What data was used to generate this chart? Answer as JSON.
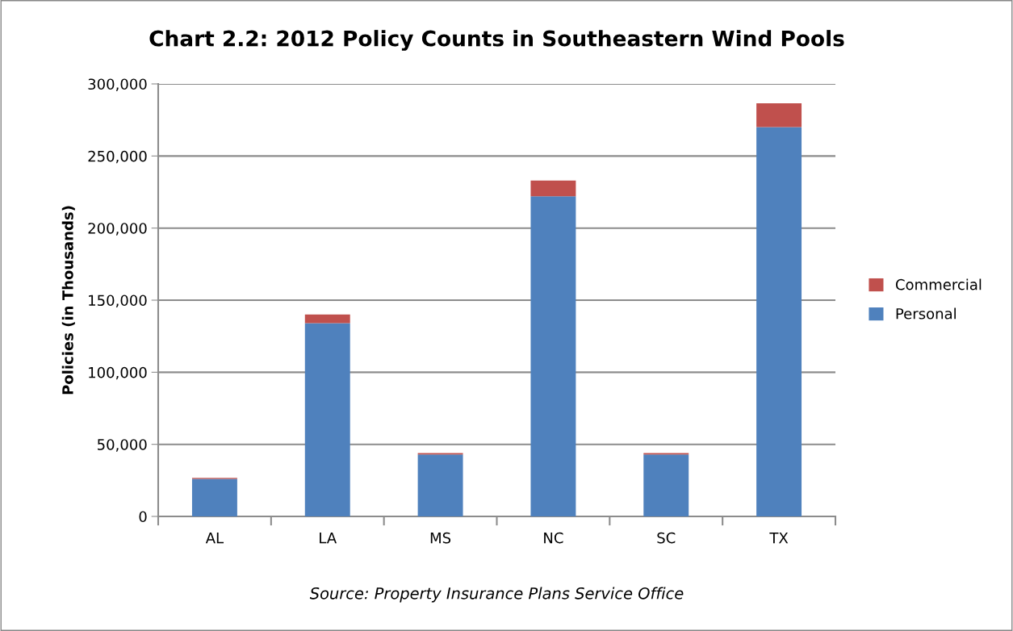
{
  "chart_data": {
    "type": "bar",
    "title": "Chart 2.2: 2012 Policy Counts in Southeastern Wind Pools",
    "ylabel": "Policies (in Thousands)",
    "categories": [
      "AL",
      "LA",
      "MS",
      "NC",
      "SC",
      "TX"
    ],
    "series": [
      {
        "name": "Personal",
        "color": "#4f81bd",
        "values": [
          26000,
          134000,
          43000,
          222000,
          43000,
          270000
        ]
      },
      {
        "name": "Commercial",
        "color": "#c0504d",
        "values": [
          700,
          6000,
          1000,
          11000,
          1000,
          16500
        ]
      }
    ],
    "stacked": true,
    "ylim": [
      0,
      300000
    ],
    "yticks": [
      0,
      {
        "value": 50000,
        "label": "50,000"
      },
      {
        "value": 100000,
        "label": "100,000"
      },
      {
        "value": 150000,
        "label": "150,000"
      },
      {
        "value": 200000,
        "label": "200,000"
      },
      {
        "value": 250000,
        "label": "250,000"
      },
      {
        "value": 300000,
        "label": "300,000"
      }
    ],
    "grid": "y",
    "legend": "right",
    "annotations": [
      "Source: Property Insurance Plans Service Office"
    ]
  }
}
